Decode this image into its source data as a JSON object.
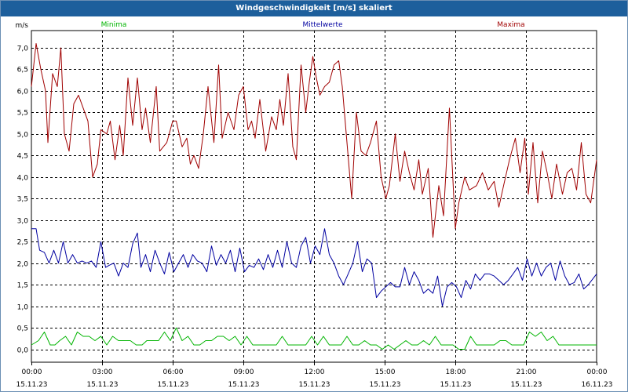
{
  "window": {
    "title": "Windgeschwindigkeit [m/s] skaliert"
  },
  "colors": {
    "minima": "#00b400",
    "mittelwerte": "#0000a0",
    "maxima": "#a00000",
    "title_bg": "#1d5f9c",
    "grid": "#000000",
    "axis_text": "#000000"
  },
  "chart_data": {
    "type": "line",
    "title": "Windgeschwindigkeit [m/s] skaliert",
    "ylabel": "m/s",
    "xlabel": "",
    "ylim": [
      -0.3,
      7.4
    ],
    "xlim": [
      0,
      24
    ],
    "grid": true,
    "y_ticks": [
      0.0,
      0.5,
      1.0,
      1.5,
      2.0,
      2.5,
      3.0,
      3.5,
      4.0,
      4.5,
      5.0,
      5.5,
      6.0,
      6.5,
      7.0
    ],
    "y_tick_labels": [
      "0,0",
      "0,5",
      "1,0",
      "1,5",
      "2,0",
      "2,5",
      "3,0",
      "3,5",
      "4,0",
      "4,5",
      "5,0",
      "5,5",
      "6,0",
      "6,5",
      "7,0"
    ],
    "x_ticks": [
      0,
      3,
      6,
      9,
      12,
      15,
      18,
      21,
      24
    ],
    "x_tick_times": [
      "00:00",
      "03:00",
      "06:00",
      "09:00",
      "12:00",
      "15:00",
      "18:00",
      "21:00",
      "00:00"
    ],
    "x_tick_dates": [
      "15.11.23",
      "15.11.23",
      "15.11.23",
      "15.11.23",
      "15.11.23",
      "15.11.23",
      "15.11.23",
      "15.11.23",
      "16.11.23"
    ],
    "legend": [
      "Minima",
      "Mittelwerte",
      "Maxima"
    ],
    "series": [
      {
        "name": "Maxima",
        "color": "#a00000",
        "x": [
          0.0,
          0.2,
          0.4,
          0.6,
          0.7,
          0.9,
          1.1,
          1.25,
          1.4,
          1.6,
          1.8,
          2.0,
          2.2,
          2.4,
          2.6,
          2.8,
          2.95,
          3.2,
          3.35,
          3.55,
          3.75,
          3.9,
          4.1,
          4.3,
          4.5,
          4.7,
          4.85,
          5.05,
          5.3,
          5.45,
          5.75,
          6.0,
          6.15,
          6.4,
          6.6,
          6.75,
          6.9,
          7.1,
          7.3,
          7.5,
          7.75,
          7.95,
          8.1,
          8.35,
          8.6,
          8.8,
          9.0,
          9.2,
          9.35,
          9.5,
          9.7,
          9.95,
          10.2,
          10.4,
          10.55,
          10.7,
          10.9,
          11.1,
          11.25,
          11.45,
          11.65,
          11.8,
          11.95,
          12.1,
          12.25,
          12.45,
          12.65,
          12.85,
          13.05,
          13.2,
          13.4,
          13.6,
          13.8,
          14.0,
          14.2,
          14.4,
          14.65,
          14.85,
          15.05,
          15.2,
          15.45,
          15.65,
          15.85,
          16.05,
          16.25,
          16.45,
          16.6,
          16.85,
          17.05,
          17.3,
          17.5,
          17.75,
          18.0,
          18.15,
          18.4,
          18.6,
          18.9,
          19.15,
          19.4,
          19.65,
          19.85,
          20.05,
          20.3,
          20.55,
          20.75,
          20.95,
          21.1,
          21.3,
          21.5,
          21.7,
          21.9,
          22.1,
          22.3,
          22.55,
          22.75,
          22.95,
          23.15,
          23.35,
          23.55,
          23.75,
          24.0
        ],
        "values": [
          6.1,
          7.1,
          6.5,
          6.0,
          4.8,
          6.4,
          6.1,
          7.0,
          5.0,
          4.6,
          5.7,
          5.9,
          5.6,
          5.3,
          4.0,
          4.3,
          5.1,
          5.0,
          5.3,
          4.4,
          5.2,
          4.5,
          6.3,
          5.2,
          6.3,
          5.1,
          5.6,
          4.8,
          6.1,
          4.6,
          4.8,
          5.3,
          5.3,
          4.7,
          4.9,
          4.3,
          4.5,
          4.2,
          5.0,
          6.1,
          4.8,
          6.6,
          4.9,
          5.5,
          5.1,
          5.9,
          6.1,
          5.1,
          5.3,
          4.9,
          5.8,
          4.6,
          5.4,
          5.1,
          5.8,
          5.2,
          6.4,
          4.7,
          4.4,
          6.6,
          5.5,
          6.2,
          6.8,
          6.3,
          5.9,
          6.1,
          6.2,
          6.6,
          6.7,
          6.1,
          4.8,
          3.5,
          5.5,
          4.6,
          4.5,
          4.8,
          5.3,
          4.0,
          3.5,
          3.8,
          5.0,
          3.9,
          4.6,
          4.1,
          3.7,
          4.4,
          3.6,
          4.2,
          2.6,
          3.8,
          3.1,
          5.6,
          2.8,
          3.4,
          4.0,
          3.7,
          3.8,
          4.1,
          3.7,
          3.9,
          3.3,
          3.8,
          4.4,
          4.9,
          4.1,
          4.9,
          3.6,
          4.8,
          3.4,
          4.6,
          4.1,
          3.5,
          4.3,
          3.6,
          4.1,
          4.2,
          3.7,
          4.8,
          3.6,
          3.4,
          4.4
        ]
      },
      {
        "name": "Mittelwerte",
        "color": "#0000a0",
        "x": [
          0.0,
          0.2,
          0.35,
          0.55,
          0.75,
          0.95,
          1.15,
          1.35,
          1.55,
          1.75,
          1.95,
          2.15,
          2.35,
          2.55,
          2.75,
          2.95,
          3.15,
          3.3,
          3.5,
          3.7,
          3.9,
          4.1,
          4.3,
          4.5,
          4.65,
          4.85,
          5.05,
          5.25,
          5.45,
          5.65,
          5.85,
          6.05,
          6.25,
          6.45,
          6.65,
          6.85,
          7.05,
          7.25,
          7.45,
          7.65,
          7.85,
          8.05,
          8.25,
          8.45,
          8.65,
          8.85,
          9.05,
          9.25,
          9.45,
          9.65,
          9.85,
          10.05,
          10.25,
          10.45,
          10.65,
          10.85,
          11.05,
          11.25,
          11.45,
          11.65,
          11.85,
          12.05,
          12.25,
          12.45,
          12.65,
          12.85,
          13.05,
          13.25,
          13.45,
          13.65,
          13.85,
          14.05,
          14.25,
          14.45,
          14.65,
          14.85,
          15.05,
          15.25,
          15.45,
          15.65,
          15.85,
          16.05,
          16.25,
          16.45,
          16.65,
          16.85,
          17.05,
          17.25,
          17.45,
          17.65,
          17.85,
          18.05,
          18.25,
          18.45,
          18.65,
          18.85,
          19.05,
          19.25,
          19.45,
          19.65,
          19.85,
          20.05,
          20.25,
          20.45,
          20.65,
          20.85,
          21.05,
          21.25,
          21.45,
          21.65,
          21.85,
          22.05,
          22.25,
          22.45,
          22.65,
          22.85,
          23.05,
          23.25,
          23.45,
          23.65,
          24.0
        ],
        "values": [
          2.8,
          2.8,
          2.3,
          2.25,
          2.0,
          2.3,
          2.0,
          2.5,
          2.0,
          2.2,
          2.0,
          2.05,
          2.0,
          2.05,
          1.9,
          2.5,
          1.9,
          1.95,
          2.0,
          1.7,
          2.0,
          1.9,
          2.45,
          2.7,
          1.9,
          2.2,
          1.8,
          2.3,
          2.0,
          1.75,
          2.25,
          1.8,
          2.0,
          2.2,
          1.9,
          2.2,
          2.05,
          2.0,
          1.8,
          2.4,
          1.95,
          2.2,
          2.0,
          2.3,
          1.8,
          2.35,
          1.8,
          1.95,
          1.9,
          2.1,
          1.85,
          2.2,
          1.9,
          2.3,
          1.9,
          2.5,
          2.0,
          1.9,
          2.4,
          2.6,
          2.0,
          2.4,
          2.2,
          2.8,
          2.2,
          2.0,
          1.7,
          1.5,
          1.75,
          2.0,
          2.5,
          1.8,
          2.1,
          2.0,
          1.2,
          1.35,
          1.45,
          1.55,
          1.45,
          1.45,
          1.9,
          1.5,
          1.8,
          1.6,
          1.3,
          1.4,
          1.3,
          1.7,
          1.0,
          1.45,
          1.55,
          1.45,
          1.2,
          1.6,
          1.4,
          1.75,
          1.6,
          1.75,
          1.75,
          1.7,
          1.6,
          1.5,
          1.6,
          1.75,
          1.9,
          1.6,
          2.1,
          1.7,
          2.0,
          1.7,
          1.9,
          2.0,
          1.6,
          2.05,
          1.7,
          1.5,
          1.55,
          1.75,
          1.4,
          1.5,
          1.75
        ]
      },
      {
        "name": "Minima",
        "color": "#00b400",
        "x": [
          0.0,
          0.3,
          0.55,
          0.8,
          1.0,
          1.2,
          1.45,
          1.7,
          1.95,
          2.2,
          2.45,
          2.7,
          2.95,
          3.2,
          3.45,
          3.7,
          3.95,
          4.2,
          4.45,
          4.7,
          4.9,
          5.15,
          5.4,
          5.65,
          5.9,
          6.15,
          6.4,
          6.65,
          6.9,
          7.15,
          7.4,
          7.65,
          7.9,
          8.15,
          8.4,
          8.65,
          8.9,
          9.15,
          9.4,
          9.65,
          9.9,
          10.15,
          10.4,
          10.65,
          10.9,
          11.15,
          11.4,
          11.65,
          11.9,
          12.15,
          12.4,
          12.65,
          12.9,
          13.15,
          13.4,
          13.65,
          13.9,
          14.15,
          14.4,
          14.65,
          14.9,
          15.15,
          15.4,
          15.65,
          15.9,
          16.15,
          16.4,
          16.65,
          16.9,
          17.15,
          17.4,
          17.65,
          17.9,
          18.15,
          18.4,
          18.65,
          18.9,
          19.15,
          19.4,
          19.65,
          19.9,
          20.15,
          20.4,
          20.65,
          20.9,
          21.15,
          21.4,
          21.65,
          21.9,
          22.15,
          22.4,
          22.65,
          22.9,
          23.15,
          23.4,
          23.65,
          24.0
        ],
        "values": [
          0.1,
          0.2,
          0.4,
          0.1,
          0.1,
          0.2,
          0.3,
          0.1,
          0.4,
          0.3,
          0.3,
          0.2,
          0.3,
          0.1,
          0.3,
          0.2,
          0.2,
          0.2,
          0.1,
          0.1,
          0.2,
          0.2,
          0.2,
          0.4,
          0.2,
          0.5,
          0.2,
          0.3,
          0.1,
          0.1,
          0.2,
          0.2,
          0.3,
          0.3,
          0.2,
          0.3,
          0.1,
          0.3,
          0.1,
          0.1,
          0.1,
          0.1,
          0.1,
          0.3,
          0.1,
          0.1,
          0.1,
          0.1,
          0.3,
          0.1,
          0.3,
          0.1,
          0.1,
          0.1,
          0.3,
          0.1,
          0.1,
          0.2,
          0.1,
          0.1,
          0.0,
          0.1,
          0.0,
          0.1,
          0.2,
          0.1,
          0.1,
          0.2,
          0.1,
          0.3,
          0.1,
          0.1,
          0.1,
          0.0,
          0.0,
          0.3,
          0.1,
          0.1,
          0.1,
          0.1,
          0.2,
          0.2,
          0.1,
          0.1,
          0.1,
          0.4,
          0.3,
          0.4,
          0.2,
          0.3,
          0.1,
          0.1,
          0.1,
          0.1,
          0.1,
          0.1,
          0.1
        ]
      }
    ]
  }
}
